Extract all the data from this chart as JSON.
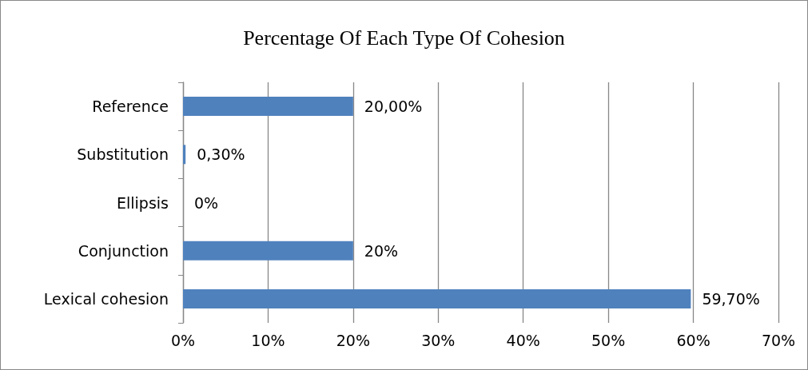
{
  "chart_data": {
    "type": "bar",
    "orientation": "horizontal",
    "title": "Percentage Of Each Type Of Cohesion",
    "categories": [
      "Reference",
      "Substitution",
      "Ellipsis",
      "Conjunction",
      "Lexical cohesion"
    ],
    "values": [
      20,
      0.3,
      0,
      20,
      59.7
    ],
    "value_labels": [
      "20,00%",
      "0,30%",
      "0%",
      "20%",
      "59,70%"
    ],
    "color": "#4f81bd",
    "xlim": [
      0,
      70
    ],
    "xticks": [
      {
        "value": 0,
        "label": "0%"
      },
      {
        "value": 10,
        "label": "10%"
      },
      {
        "value": 20,
        "label": "20%"
      },
      {
        "value": 30,
        "label": "30%"
      },
      {
        "value": 40,
        "label": "40%"
      },
      {
        "value": 50,
        "label": "50%"
      },
      {
        "value": 60,
        "label": "60%"
      },
      {
        "value": 70,
        "label": "70%"
      }
    ],
    "grid": "x"
  }
}
